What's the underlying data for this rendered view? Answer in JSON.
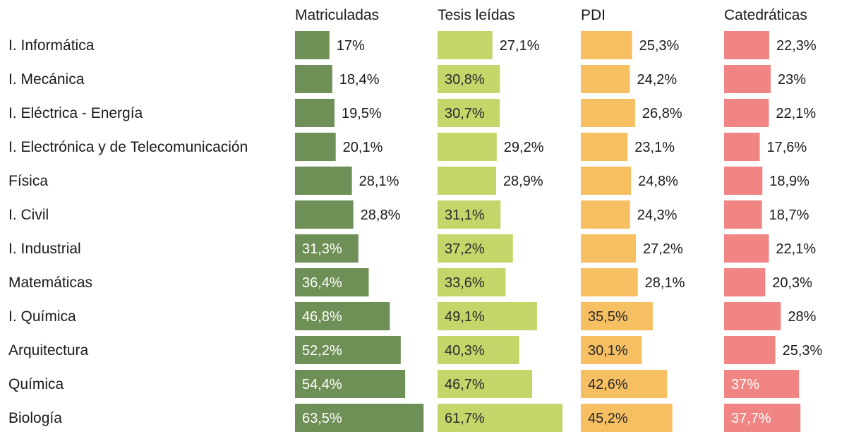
{
  "chart_data": {
    "type": "bar",
    "orientation": "horizontal",
    "categories": [
      "I. Informática",
      "I. Mecánica",
      "I. Eléctrica - Energía",
      "I. Electrónica y de Telecomunicación",
      "Física",
      "I. Civil",
      "I. Industrial",
      "Matemáticas",
      "I. Química",
      "Arquitectura",
      "Química",
      "Biología"
    ],
    "series": [
      {
        "name": "Matriculadas",
        "color": "#6e8f55",
        "values": [
          17,
          18.4,
          19.5,
          20.1,
          28.1,
          28.8,
          31.3,
          36.4,
          46.8,
          52.2,
          54.4,
          63.5
        ],
        "labels": [
          "17%",
          "18,4%",
          "19,5%",
          "20,1%",
          "28,1%",
          "28,8%",
          "31,3%",
          "36,4%",
          "46,8%",
          "52,2%",
          "54,4%",
          "63,5%"
        ]
      },
      {
        "name": "Tesis leídas",
        "color": "#c4d56a",
        "values": [
          27.1,
          30.8,
          30.7,
          29.2,
          28.9,
          31.1,
          37.2,
          33.6,
          49.1,
          40.3,
          46.7,
          61.7
        ],
        "labels": [
          "27,1%",
          "30,8%",
          "30,7%",
          "29,2%",
          "28,9%",
          "31,1%",
          "37,2%",
          "33,6%",
          "49,1%",
          "40,3%",
          "46,7%",
          "61,7%"
        ]
      },
      {
        "name": "PDI",
        "color": "#f5bf62",
        "values": [
          25.3,
          24.2,
          26.8,
          23.1,
          24.8,
          24.3,
          27.2,
          28.1,
          35.5,
          30.1,
          42.6,
          45.2
        ],
        "labels": [
          "25,3%",
          "24,2%",
          "26,8%",
          "23,1%",
          "24,8%",
          "24,3%",
          "27,2%",
          "28,1%",
          "35,5%",
          "30,1%",
          "42,6%",
          "45,2%"
        ]
      },
      {
        "name": "Catedráticas",
        "color": "#f08583",
        "values": [
          22.3,
          23,
          22.1,
          17.6,
          18.9,
          18.7,
          22.1,
          20.3,
          28,
          25.3,
          37,
          37.7
        ],
        "labels": [
          "22,3%",
          "23%",
          "22,1%",
          "17,6%",
          "18,9%",
          "18,7%",
          "22,1%",
          "20,3%",
          "28%",
          "25,3%",
          "37%",
          "37,7%"
        ]
      }
    ],
    "title": "",
    "xlabel": "",
    "ylabel": "",
    "legend": "column headers"
  }
}
